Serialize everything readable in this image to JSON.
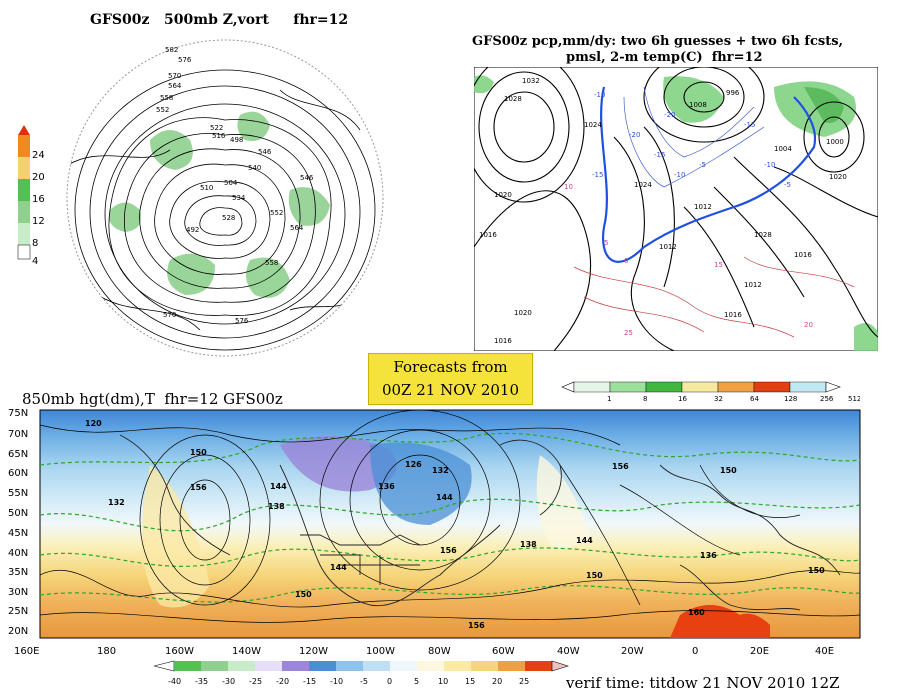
{
  "panels": {
    "vort500": {
      "title": "GFS00z   500mb Z,vort     fhr=12",
      "colorbar": [
        "24",
        "20",
        "16",
        "12",
        "8",
        "4"
      ],
      "contour_labels": [
        "582",
        "576",
        "570",
        "564",
        "558",
        "552",
        "546",
        "540",
        "534",
        "528",
        "522",
        "516",
        "510",
        "504",
        "498",
        "492",
        "576",
        "570",
        "564",
        "558",
        "552",
        "546"
      ]
    },
    "precip": {
      "title_line1": "GFS00z pcp,mm/dy: two 6h guesses + two 6h fcsts,",
      "title_line2": "pmsl, 2-m temp(C)  fhr=12",
      "pressure_labels": [
        "1032",
        "1028",
        "1024",
        "1020",
        "1016",
        "1012",
        "1008",
        "1004",
        "1000",
        "996",
        "1020",
        "1016",
        "1012",
        "1024",
        "1028",
        "1020",
        "1016",
        "1012",
        "1016"
      ],
      "temp_labels": [
        "-20",
        "-15",
        "-10",
        "-5",
        "0",
        "5",
        "10",
        "15",
        "20",
        "25",
        "-20",
        "-15",
        "-10",
        "-5",
        "-10",
        "-15"
      ],
      "colorbar": [
        "1",
        "8",
        "16",
        "32",
        "64",
        "128",
        "256",
        "512"
      ]
    },
    "h850": {
      "title": "850mb hgt(dm),T  fhr=12 GFS00z",
      "lat_labels": [
        "75N",
        "70N",
        "65N",
        "60N",
        "55N",
        "50N",
        "45N",
        "40N",
        "35N",
        "30N",
        "25N",
        "20N"
      ],
      "lon_labels": [
        "160E",
        "180",
        "160W",
        "140W",
        "120W",
        "100W",
        "80W",
        "60W",
        "40W",
        "20W",
        "0",
        "20E",
        "40E"
      ],
      "height_labels": [
        "120",
        "150",
        "156",
        "132",
        "144",
        "138",
        "126",
        "132",
        "136",
        "144",
        "150",
        "156",
        "138",
        "144",
        "150",
        "156",
        "144",
        "136",
        "150",
        "150",
        "156",
        "160"
      ],
      "colorbar": [
        "-40",
        "-35",
        "-30",
        "-25",
        "-20",
        "-15",
        "-10",
        "-5",
        "0",
        "5",
        "10",
        "15",
        "20",
        "25"
      ]
    }
  },
  "forecast_box": {
    "line1": "Forecasts from",
    "line2": "00Z 21 NOV 2010"
  },
  "verif_time": "verif time: titdow 21 NOV 2010 12Z",
  "colors": {
    "vort_fill": "#7fc77f",
    "precip_green": "#7ad07a",
    "cold_blue": "#4a90d9",
    "warm_orange": "#f0a040",
    "box_yellow": "#f5e23a"
  }
}
